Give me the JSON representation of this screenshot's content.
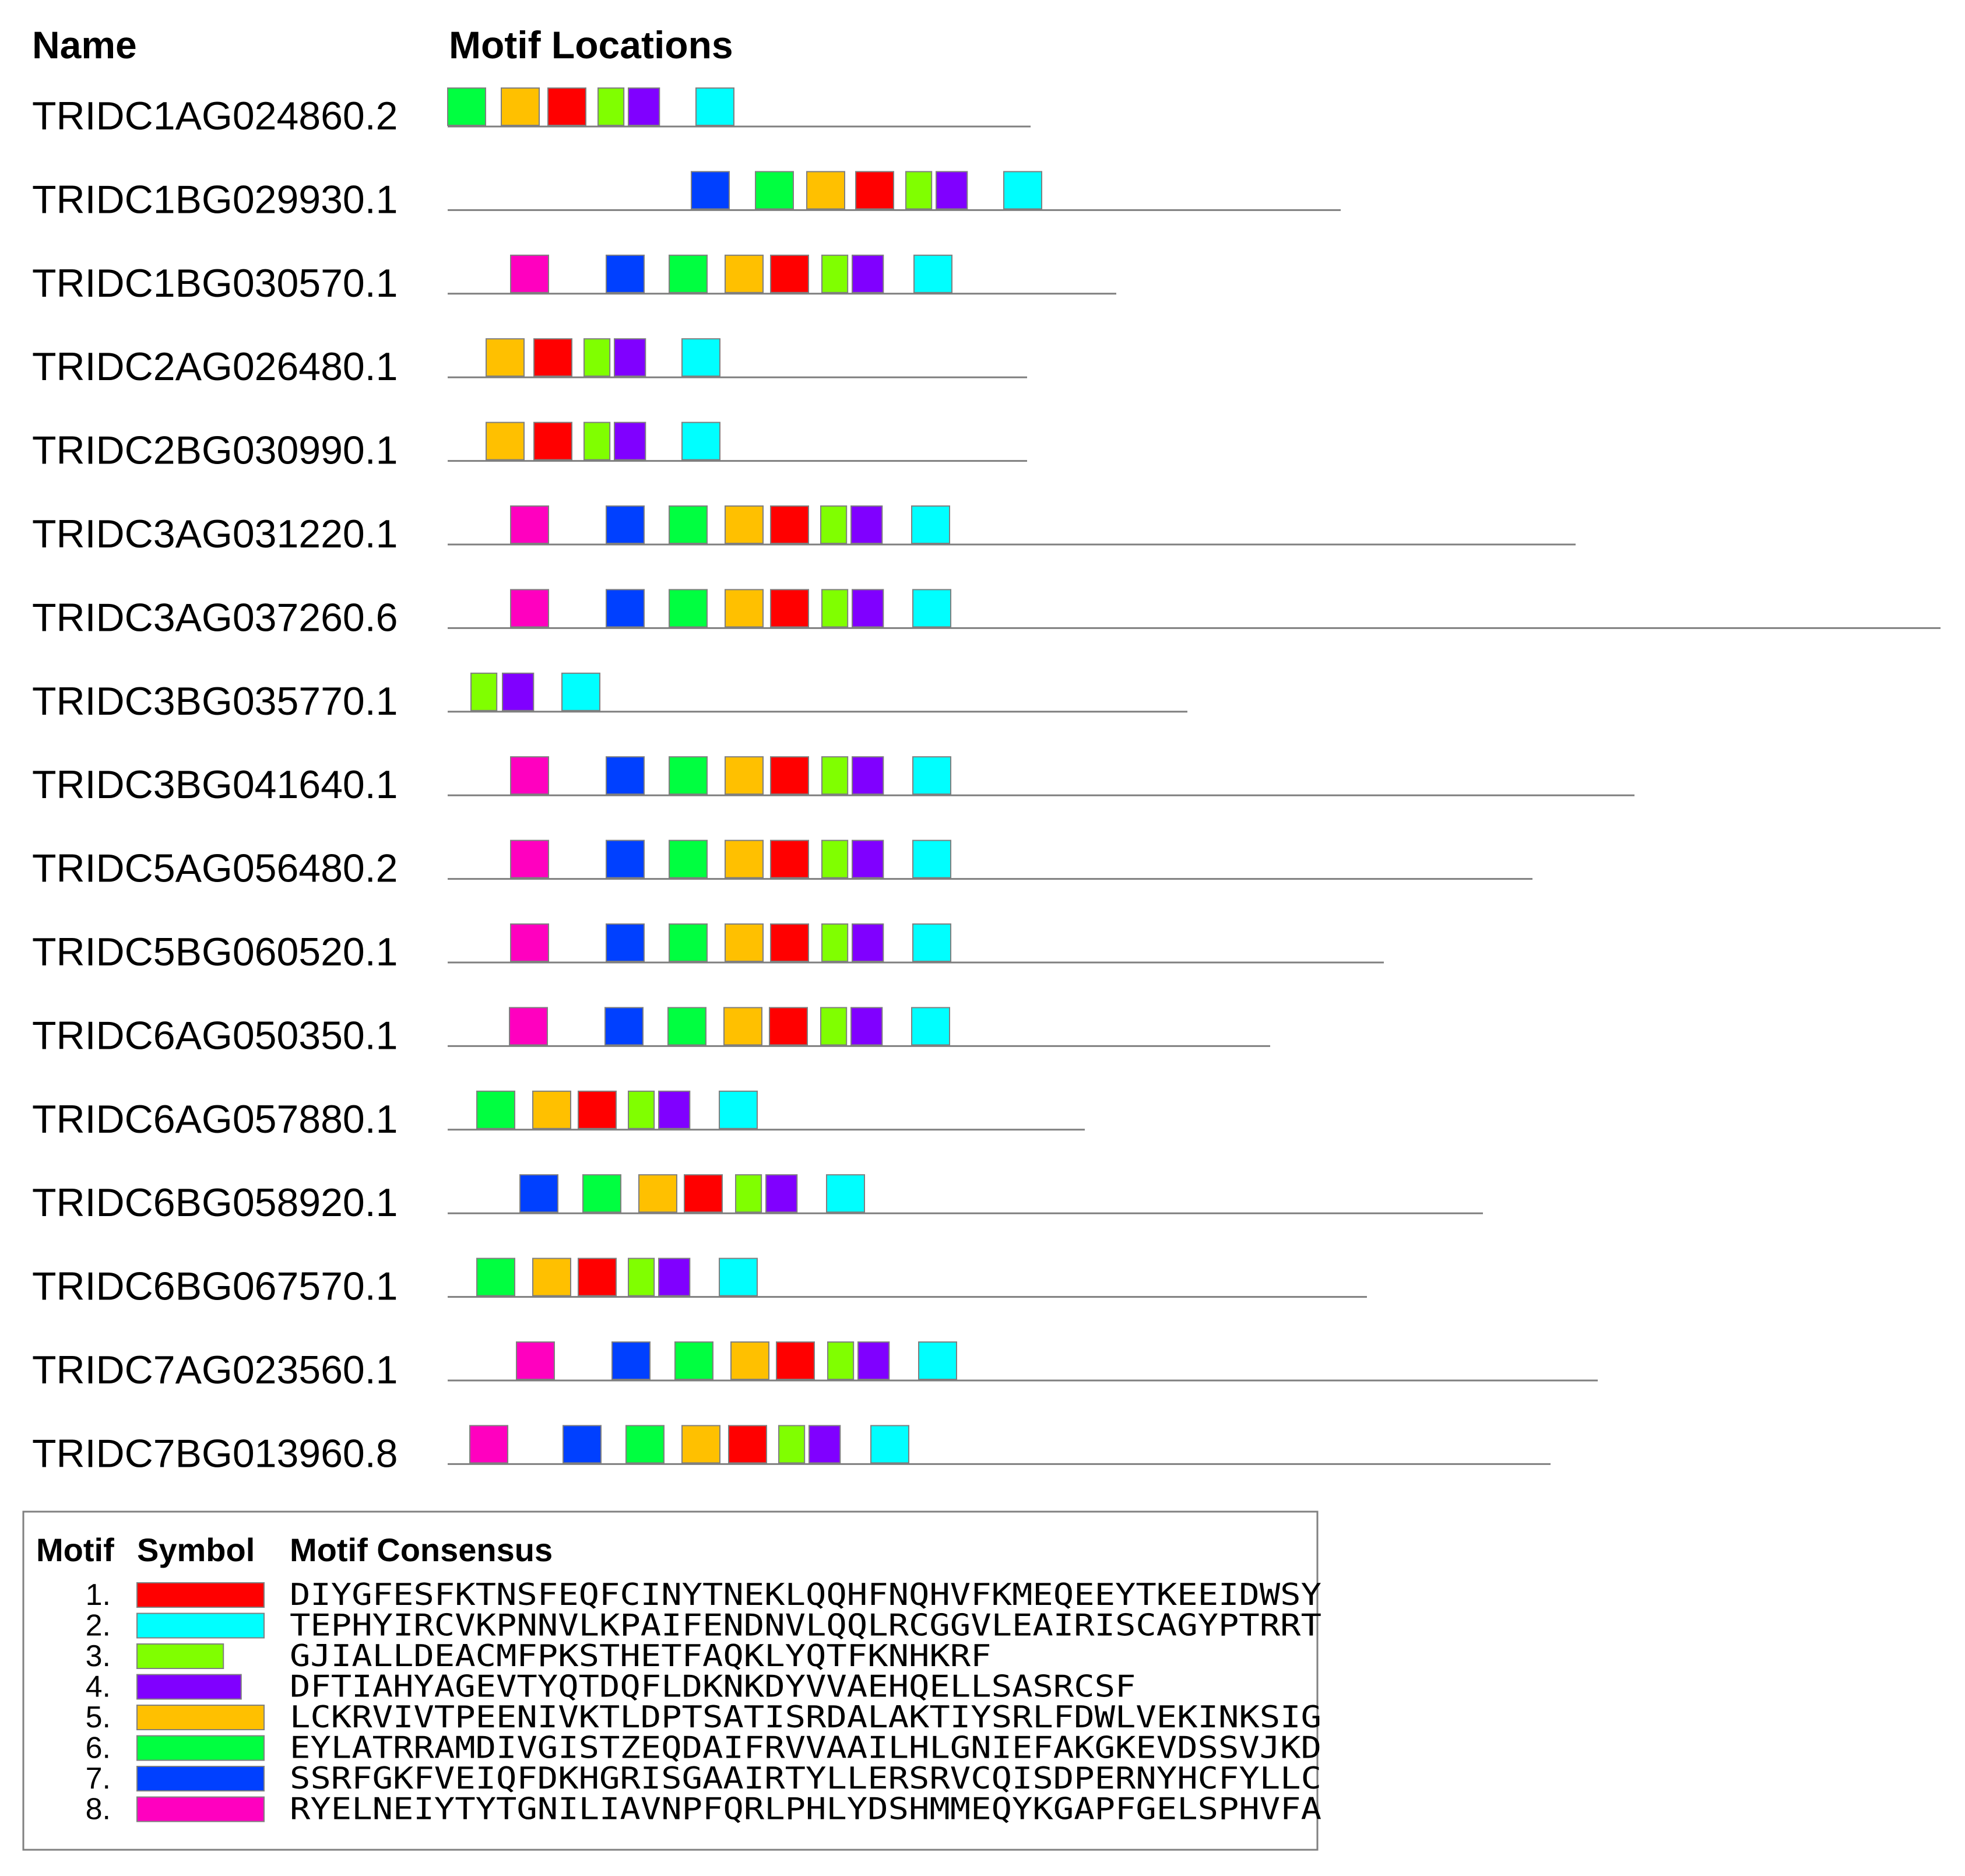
{
  "headers": {
    "name": "Name",
    "locations": "Motif Locations"
  },
  "motif_colors": {
    "1": "#ff0000",
    "2": "#00ffff",
    "3": "#80ff00",
    "4": "#8000ff",
    "5": "#ffc000",
    "6": "#00ff40",
    "7": "#0040ff",
    "8": "#ff00bf"
  },
  "sequences": [
    {
      "name": "TRIDC1AG024860.2",
      "length": 1000,
      "motifs": [
        [
          6,
          0
        ],
        [
          5,
          92
        ],
        [
          1,
          172
        ],
        [
          3,
          258
        ],
        [
          4,
          310
        ],
        [
          2,
          426
        ]
      ]
    },
    {
      "name": "TRIDC1BG029930.1",
      "length": 1532,
      "motifs": [
        [
          7,
          418
        ],
        [
          6,
          528
        ],
        [
          5,
          616
        ],
        [
          1,
          700
        ],
        [
          3,
          786
        ],
        [
          4,
          838
        ],
        [
          2,
          954
        ]
      ]
    },
    {
      "name": "TRIDC1BG030570.1",
      "length": 1147,
      "motifs": [
        [
          8,
          108
        ],
        [
          7,
          272
        ],
        [
          6,
          380
        ],
        [
          5,
          476
        ],
        [
          1,
          554
        ],
        [
          3,
          642
        ],
        [
          4,
          694
        ],
        [
          2,
          800
        ]
      ]
    },
    {
      "name": "TRIDC2AG026480.1",
      "length": 994,
      "motifs": [
        [
          5,
          66
        ],
        [
          1,
          148
        ],
        [
          3,
          234
        ],
        [
          4,
          286
        ],
        [
          2,
          402
        ]
      ]
    },
    {
      "name": "TRIDC2BG030990.1",
      "length": 994,
      "motifs": [
        [
          5,
          66
        ],
        [
          1,
          148
        ],
        [
          3,
          234
        ],
        [
          4,
          286
        ],
        [
          2,
          402
        ]
      ]
    },
    {
      "name": "TRIDC3AG031220.1",
      "length": 1935,
      "motifs": [
        [
          8,
          108
        ],
        [
          7,
          272
        ],
        [
          6,
          380
        ],
        [
          5,
          476
        ],
        [
          1,
          554
        ],
        [
          3,
          640
        ],
        [
          4,
          692
        ],
        [
          2,
          796
        ]
      ]
    },
    {
      "name": "TRIDC3AG037260.6",
      "length": 2561,
      "motifs": [
        [
          8,
          108
        ],
        [
          7,
          272
        ],
        [
          6,
          380
        ],
        [
          5,
          476
        ],
        [
          1,
          554
        ],
        [
          3,
          642
        ],
        [
          4,
          694
        ],
        [
          2,
          798
        ]
      ]
    },
    {
      "name": "TRIDC3BG035770.1",
      "length": 1269,
      "motifs": [
        [
          3,
          40
        ],
        [
          4,
          94
        ],
        [
          2,
          196
        ]
      ]
    },
    {
      "name": "TRIDC3BG041640.1",
      "length": 2036,
      "motifs": [
        [
          8,
          108
        ],
        [
          7,
          272
        ],
        [
          6,
          380
        ],
        [
          5,
          476
        ],
        [
          1,
          554
        ],
        [
          3,
          642
        ],
        [
          4,
          694
        ],
        [
          2,
          798
        ]
      ]
    },
    {
      "name": "TRIDC5AG056480.2",
      "length": 1861,
      "motifs": [
        [
          8,
          108
        ],
        [
          7,
          272
        ],
        [
          6,
          380
        ],
        [
          5,
          476
        ],
        [
          1,
          554
        ],
        [
          3,
          642
        ],
        [
          4,
          694
        ],
        [
          2,
          798
        ]
      ]
    },
    {
      "name": "TRIDC5BG060520.1",
      "length": 1606,
      "motifs": [
        [
          8,
          108
        ],
        [
          7,
          272
        ],
        [
          6,
          380
        ],
        [
          5,
          476
        ],
        [
          1,
          554
        ],
        [
          3,
          642
        ],
        [
          4,
          694
        ],
        [
          2,
          798
        ]
      ]
    },
    {
      "name": "TRIDC6AG050350.1",
      "length": 1411,
      "motifs": [
        [
          8,
          106
        ],
        [
          7,
          270
        ],
        [
          6,
          378
        ],
        [
          5,
          474
        ],
        [
          1,
          552
        ],
        [
          3,
          640
        ],
        [
          4,
          692
        ],
        [
          2,
          796
        ]
      ]
    },
    {
      "name": "TRIDC6AG057880.1",
      "length": 1093,
      "motifs": [
        [
          6,
          50
        ],
        [
          5,
          146
        ],
        [
          1,
          224
        ],
        [
          3,
          310
        ],
        [
          4,
          362
        ],
        [
          2,
          466
        ]
      ]
    },
    {
      "name": "TRIDC6BG058920.1",
      "length": 1776,
      "motifs": [
        [
          7,
          124
        ],
        [
          6,
          232
        ],
        [
          5,
          328
        ],
        [
          1,
          406
        ],
        [
          3,
          494
        ],
        [
          4,
          546
        ],
        [
          2,
          650
        ]
      ]
    },
    {
      "name": "TRIDC6BG067570.1",
      "length": 1577,
      "motifs": [
        [
          6,
          50
        ],
        [
          5,
          146
        ],
        [
          1,
          224
        ],
        [
          3,
          310
        ],
        [
          4,
          362
        ],
        [
          2,
          466
        ]
      ]
    },
    {
      "name": "TRIDC7AG023560.1",
      "length": 1973,
      "motifs": [
        [
          8,
          118
        ],
        [
          7,
          282
        ],
        [
          6,
          390
        ],
        [
          5,
          486
        ],
        [
          1,
          564
        ],
        [
          3,
          652
        ],
        [
          4,
          704
        ],
        [
          2,
          808
        ]
      ]
    },
    {
      "name": "TRIDC7BG013960.8",
      "length": 1892,
      "motifs": [
        [
          8,
          38
        ],
        [
          7,
          198
        ],
        [
          6,
          306
        ],
        [
          5,
          402
        ],
        [
          1,
          482
        ],
        [
          3,
          568
        ],
        [
          4,
          620
        ],
        [
          2,
          726
        ]
      ]
    }
  ],
  "legend": {
    "headers": {
      "motif": "Motif",
      "symbol": "Symbol",
      "consensus": "Motif Consensus"
    },
    "items": [
      {
        "num": "1.",
        "motif": 1,
        "width": 50,
        "consensus": "DIYGFESFKTNSFEQFCINYTNEKLQQHFNQHVFKMEQEEYTKEEIDWSY"
      },
      {
        "num": "2.",
        "motif": 2,
        "width": 50,
        "consensus": "TEPHYIRCVKPNNVLKPAIFENDNVLQQLRCGGVLEAIRISCAGYPTRRT"
      },
      {
        "num": "3.",
        "motif": 3,
        "width": 34,
        "consensus": "GJIALLDEACMFPKSTHETFAQKLYQTFKNHKRF"
      },
      {
        "num": "4.",
        "motif": 4,
        "width": 41,
        "consensus": "DFTIAHYAGEVTYQTDQFLDKNKDYVVAEHQELLSASRCSF"
      },
      {
        "num": "5.",
        "motif": 5,
        "width": 50,
        "consensus": "LCKRVIVTPEENIVKTLDPTSATISRDALAKTIYSRLFDWLVEKINKSIG"
      },
      {
        "num": "6.",
        "motif": 6,
        "width": 50,
        "consensus": "EYLATRRAMDIVGISTZEQDAIFRVVAAILHLGNIEFAKGKEVDSSVJKD"
      },
      {
        "num": "7.",
        "motif": 7,
        "width": 50,
        "consensus": "SSRFGKFVEIQFDKHGRISGAAIRTYLLERSRVCQISDPERNYHCFYLLC"
      },
      {
        "num": "8.",
        "motif": 8,
        "width": 50,
        "consensus": "RYELNEIYTYTGNILIAVNPFQRLPHLYDSHMMEQYKGAPFGELSPHVFA"
      }
    ]
  }
}
